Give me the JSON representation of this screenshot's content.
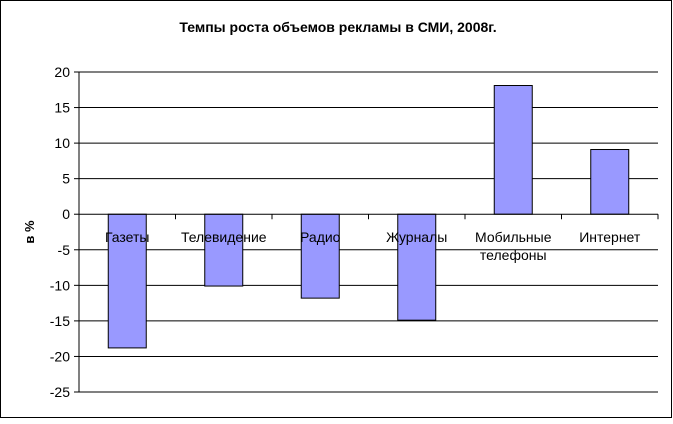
{
  "chart_data": {
    "type": "bar",
    "title": "Темпы роста объемов рекламы в СМИ, 2008г.",
    "ylabel": "в %",
    "xlabel": "",
    "categories": [
      [
        "Газеты"
      ],
      [
        "Телевидение"
      ],
      [
        "Радио"
      ],
      [
        "Журналы"
      ],
      [
        "Мобильные",
        "телефоны"
      ],
      [
        "Интернет"
      ]
    ],
    "values": [
      -18.8,
      -10.1,
      -11.8,
      -14.9,
      18.1,
      9.1
    ],
    "ylim": [
      -25,
      20
    ],
    "yticks": [
      20,
      15,
      10,
      5,
      0,
      -5,
      -10,
      -15,
      -20,
      -25
    ],
    "grid": true,
    "legend": "none",
    "bar_color": "#9999ff",
    "bar_stroke": "#000000"
  }
}
